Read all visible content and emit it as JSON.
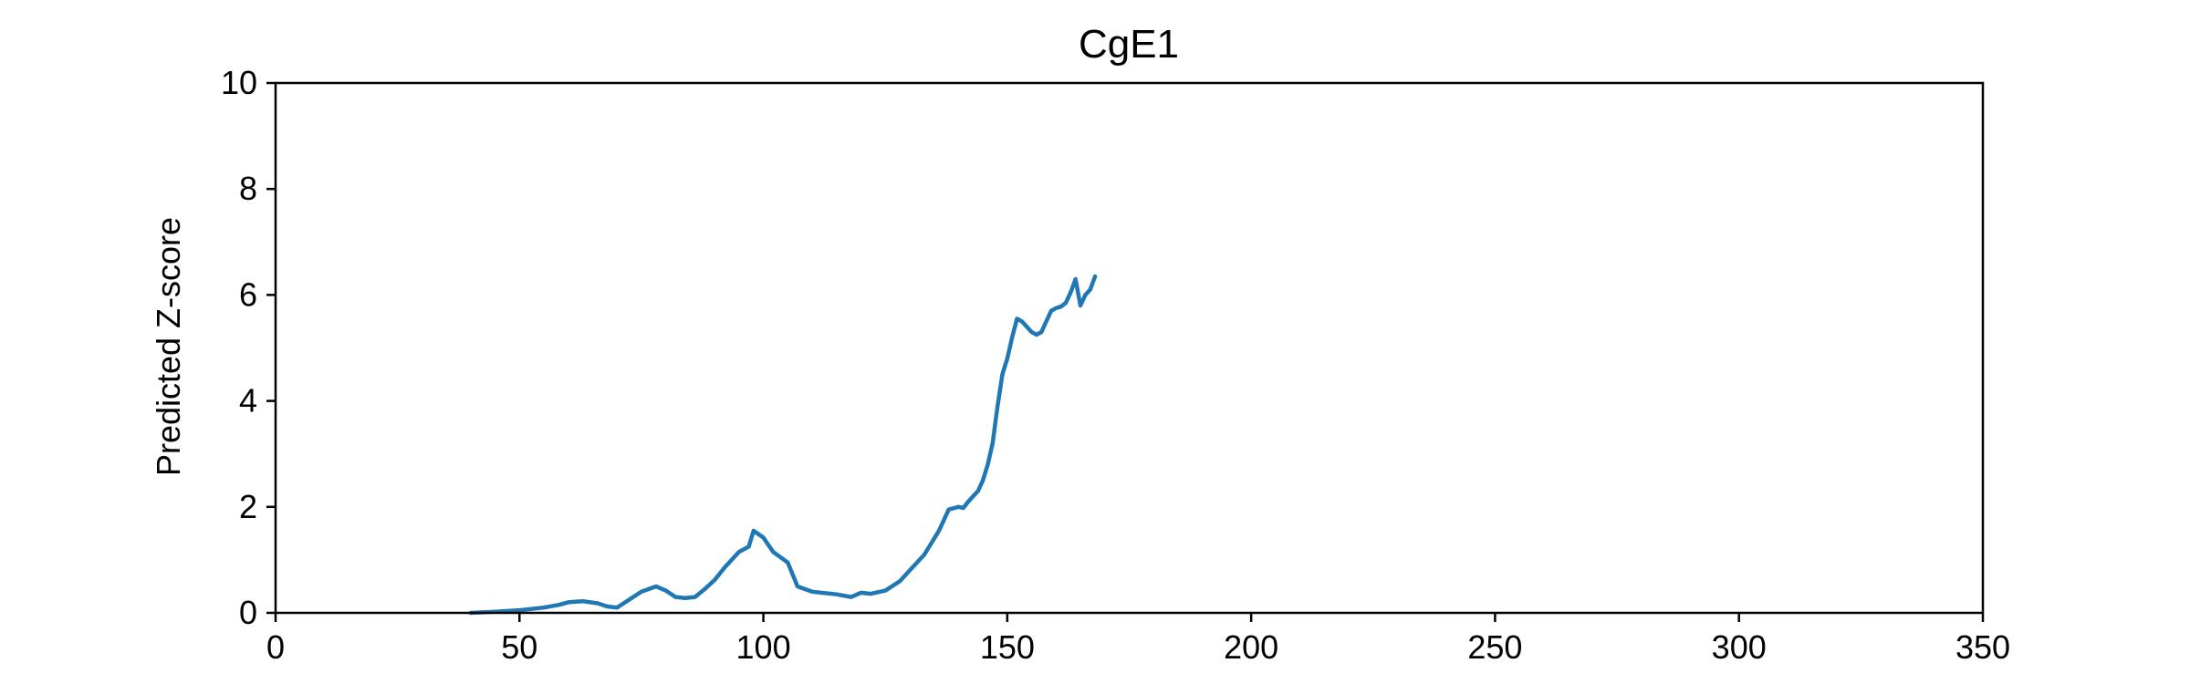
{
  "chart_data": {
    "type": "line",
    "title": "CgE1",
    "xlabel": "",
    "ylabel": "Predicted Z-score",
    "xlim": [
      0,
      350
    ],
    "ylim": [
      0,
      10
    ],
    "xticks": [
      0,
      50,
      100,
      150,
      200,
      250,
      300,
      350
    ],
    "yticks": [
      0,
      2,
      4,
      6,
      8,
      10
    ],
    "grid": false,
    "colors": {
      "line": "#1f77b4",
      "axis": "#000000"
    },
    "series": [
      {
        "x": [
          40,
          45,
          50,
          55,
          58,
          60,
          63,
          66,
          68,
          70,
          72,
          75,
          78,
          80,
          82,
          84,
          86,
          88,
          90,
          92,
          95,
          97,
          98,
          100,
          102,
          105,
          107,
          110,
          115,
          118,
          120,
          122,
          125,
          128,
          130,
          133,
          136,
          138,
          140,
          141,
          142,
          143,
          144,
          145,
          146,
          147,
          148,
          149,
          150,
          151,
          152,
          153,
          154,
          155,
          156,
          157,
          158,
          159,
          160,
          161,
          162,
          163,
          164,
          165,
          166,
          167,
          168
        ],
        "y": [
          0.0,
          0.02,
          0.05,
          0.1,
          0.15,
          0.2,
          0.22,
          0.18,
          0.12,
          0.1,
          0.22,
          0.4,
          0.5,
          0.42,
          0.3,
          0.28,
          0.3,
          0.45,
          0.62,
          0.85,
          1.15,
          1.25,
          1.55,
          1.42,
          1.15,
          0.95,
          0.5,
          0.4,
          0.35,
          0.3,
          0.38,
          0.36,
          0.42,
          0.6,
          0.8,
          1.1,
          1.55,
          1.95,
          2.0,
          1.98,
          2.1,
          2.2,
          2.3,
          2.5,
          2.8,
          3.2,
          3.9,
          4.5,
          4.8,
          5.2,
          5.55,
          5.5,
          5.4,
          5.3,
          5.25,
          5.3,
          5.5,
          5.7,
          5.75,
          5.78,
          5.85,
          6.05,
          6.3,
          5.8,
          6.0,
          6.1,
          6.35
        ]
      }
    ]
  }
}
